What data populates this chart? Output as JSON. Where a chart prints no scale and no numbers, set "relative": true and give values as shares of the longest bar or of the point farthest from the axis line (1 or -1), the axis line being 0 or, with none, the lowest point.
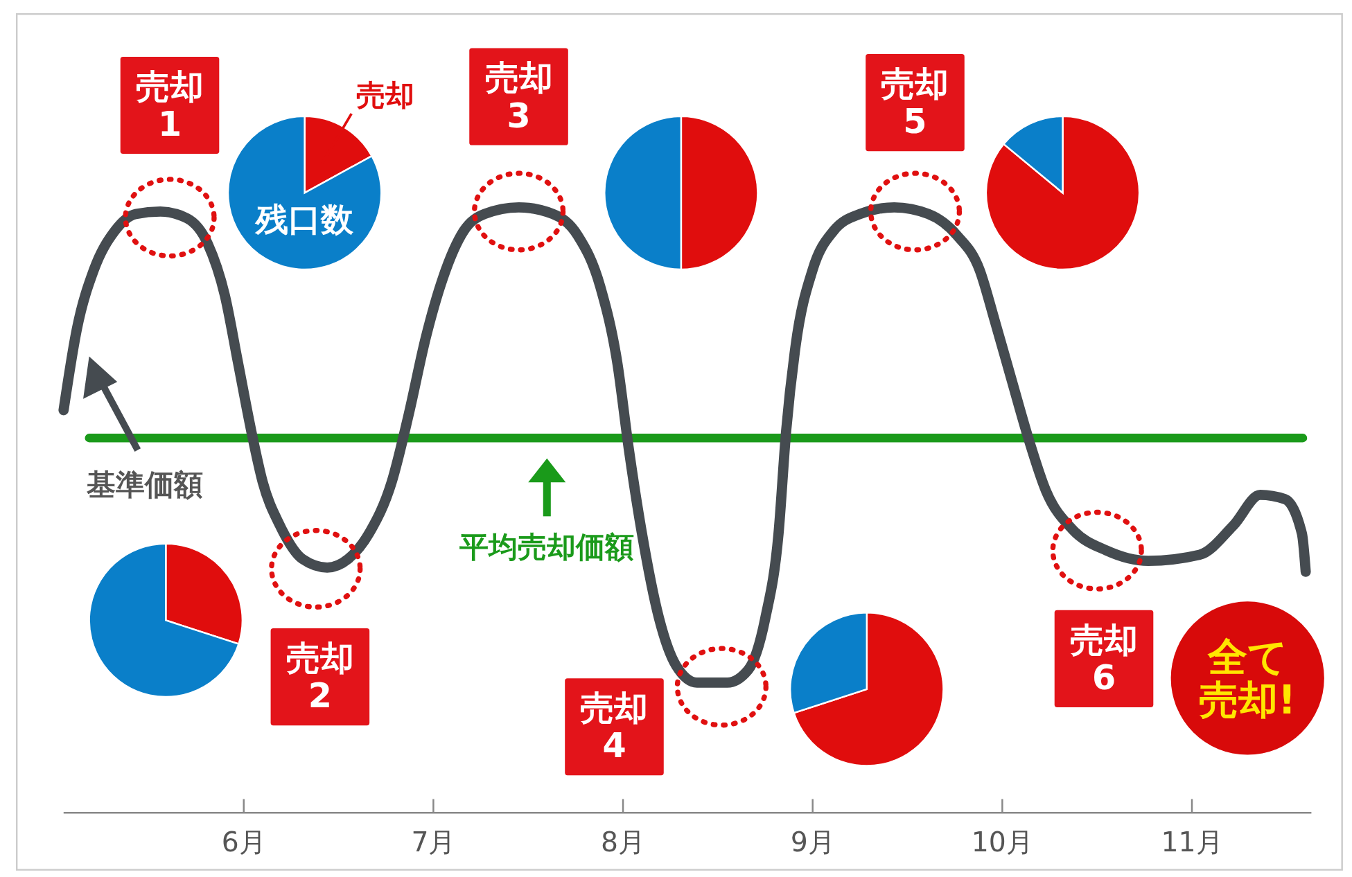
{
  "chart_data": [
    {
      "type": "line",
      "relative": true,
      "x": [
        5.05,
        5.12,
        5.21,
        5.32,
        5.43,
        5.56,
        5.7,
        5.81,
        5.9,
        5.97,
        6.04,
        6.1,
        6.19,
        6.31,
        6.44,
        6.55,
        6.66,
        6.78,
        6.87,
        6.96,
        7.05,
        7.16,
        7.27,
        7.45,
        7.63,
        7.76,
        7.88,
        7.97,
        8.03,
        8.1,
        8.19,
        8.28,
        8.39,
        8.55,
        8.66,
        8.75,
        8.82,
        8.86,
        8.91,
        9.0,
        9.11,
        9.25,
        9.43,
        9.61,
        9.76,
        9.88,
        9.96,
        10.05,
        10.14,
        10.23,
        10.37,
        10.55,
        10.77,
        11.04,
        11.22,
        11.36,
        11.49,
        11.58,
        11.6
      ],
      "series": [
        {
          "color": "#454b50",
          "values": [
            0.665,
            0.799,
            0.897,
            0.961,
            0.989,
            0.993,
            0.982,
            0.94,
            0.855,
            0.743,
            0.63,
            0.546,
            0.475,
            0.419,
            0.405,
            0.419,
            0.461,
            0.546,
            0.658,
            0.785,
            0.883,
            0.961,
            0.989,
            1.0,
            0.989,
            0.954,
            0.869,
            0.743,
            0.602,
            0.461,
            0.321,
            0.243,
            0.215,
            0.215,
            0.236,
            0.321,
            0.461,
            0.63,
            0.771,
            0.897,
            0.961,
            0.989,
            1.0,
            0.989,
            0.954,
            0.897,
            0.813,
            0.714,
            0.616,
            0.532,
            0.468,
            0.433,
            0.416,
            0.426,
            0.475,
            0.525,
            0.518,
            0.461,
            0.398
          ]
        }
      ],
      "xlim": [
        5.05,
        11.63
      ],
      "xticks": [
        {
          "value": 6,
          "label": "6月"
        },
        {
          "value": 7,
          "label": "7月"
        },
        {
          "value": 8,
          "label": "8月"
        },
        {
          "value": 9,
          "label": "9月"
        },
        {
          "value": 10,
          "label": "10月"
        },
        {
          "value": 11,
          "label": "11月"
        }
      ],
      "ref_lines": [
        {
          "axis": "y",
          "value": 0.619,
          "label": "平均売却価額",
          "color": "#1a9a1a"
        }
      ],
      "annotations": [
        "基準価額",
        "全て売却!",
        {
          "text": "売却\n1",
          "x": 5.61,
          "y": 0.99
        },
        {
          "text": "売却\n2",
          "x": 6.38,
          "y": 0.41
        },
        {
          "text": "売却\n3",
          "x": 7.45,
          "y": 1.0
        },
        {
          "text": "売却\n4",
          "x": 8.52,
          "y": 0.215
        },
        {
          "text": "売却\n5",
          "x": 9.54,
          "y": 1.0
        },
        {
          "text": "売却\n6",
          "x": 10.5,
          "y": 0.44
        }
      ]
    },
    {
      "type": "pie",
      "categories": [
        "売却",
        "残口数"
      ],
      "values": [
        17,
        83
      ],
      "colors": [
        "#e00d0d",
        "#0a7fc9"
      ]
    },
    {
      "type": "pie",
      "categories": [
        null,
        null
      ],
      "values": [
        30,
        70
      ],
      "colors": [
        "#e00d0d",
        "#0a7fc9"
      ]
    },
    {
      "type": "pie",
      "categories": [
        null,
        null
      ],
      "values": [
        50,
        50
      ],
      "colors": [
        "#e00d0d",
        "#0a7fc9"
      ]
    },
    {
      "type": "pie",
      "categories": [
        null,
        null
      ],
      "values": [
        70,
        30
      ],
      "colors": [
        "#e00d0d",
        "#0a7fc9"
      ]
    },
    {
      "type": "pie",
      "categories": [
        null,
        null
      ],
      "values": [
        86,
        14
      ],
      "colors": [
        "#e00d0d",
        "#0a7fc9"
      ]
    }
  ]
}
